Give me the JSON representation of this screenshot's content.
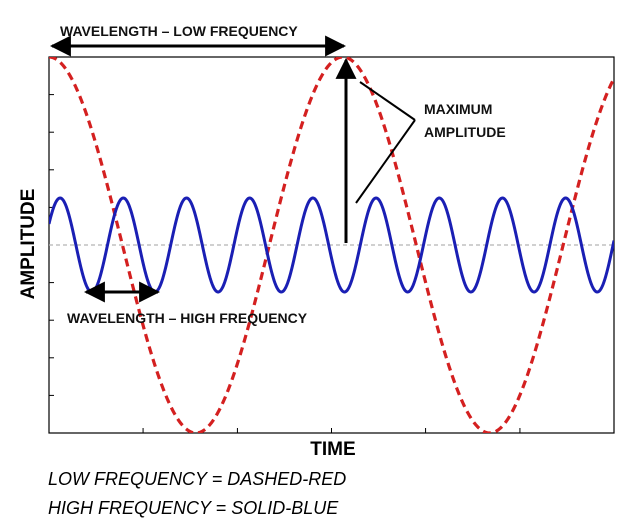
{
  "chart_data": {
    "type": "line",
    "xlabel": "TIME",
    "ylabel": "AMPLITUDE",
    "xlim": [
      0,
      2
    ],
    "ylim": [
      -1,
      1
    ],
    "tick_labels_shown": false,
    "grid": false,
    "x_ticks": [
      0.333,
      0.667,
      1.0,
      1.333,
      1.667
    ],
    "y_ticks": [
      -0.8,
      -0.6,
      -0.4,
      -0.2,
      0.2,
      0.4,
      0.6,
      0.8
    ],
    "baseline": 0,
    "series": [
      {
        "style": "dashed",
        "color": "#d42020",
        "waveform": "cosine",
        "amplitude": 1.0,
        "period": 1.04,
        "phase_peak_at": 0.0
      },
      {
        "style": "solid",
        "color": "#1a1fb4",
        "waveform": "cosine",
        "amplitude": 0.25,
        "period": 0.2237,
        "phase_peak_at": 0.263
      }
    ],
    "annotations": {
      "wavelength_low": "WAVELENGTH – LOW FREQUENCY",
      "wavelength_high": "WAVELENGTH – HIGH FREQUENCY",
      "max_amplitude_line1": "MAXIMUM",
      "max_amplitude_line2": "AMPLITUDE"
    }
  },
  "legend": {
    "low": "LOW FREQUENCY = DASHED-RED",
    "high": "HIGH FREQUENCY = SOLID-BLUE"
  }
}
